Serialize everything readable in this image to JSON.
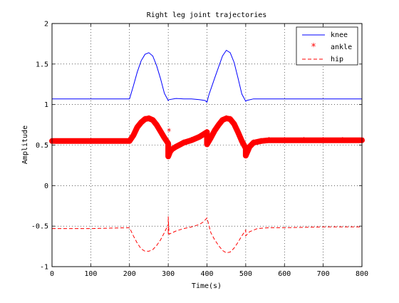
{
  "chart_data": {
    "type": "line",
    "title": "Right leg joint trajectories",
    "xlabel": "Time(s)",
    "ylabel": "Amplitude",
    "xlim": [
      0,
      800
    ],
    "ylim": [
      -1,
      2
    ],
    "xticks": [
      0,
      100,
      200,
      300,
      400,
      500,
      600,
      700,
      800
    ],
    "yticks": [
      -1,
      -0.5,
      0,
      0.5,
      1,
      1.5,
      2
    ],
    "xtick_labels": [
      "0",
      "100",
      "200",
      "300",
      "400",
      "500",
      "600",
      "700",
      "800"
    ],
    "ytick_labels": [
      "-1",
      "-0.5",
      "0",
      "0.5",
      "1",
      "1.5",
      "2"
    ],
    "grid": true,
    "legend_position": "top-right",
    "series": [
      {
        "name": "knee",
        "color": "#0000ff",
        "style": "solid",
        "x": [
          0,
          200,
          210,
          220,
          230,
          240,
          250,
          260,
          270,
          280,
          290,
          300,
          302,
          320,
          340,
          360,
          380,
          395,
          400,
          405,
          420,
          440,
          450,
          460,
          470,
          480,
          490,
          500,
          502,
          520,
          550,
          600,
          700,
          800
        ],
        "y": [
          1.07,
          1.07,
          1.23,
          1.4,
          1.54,
          1.62,
          1.64,
          1.6,
          1.48,
          1.32,
          1.14,
          1.05,
          1.06,
          1.075,
          1.07,
          1.07,
          1.06,
          1.05,
          1.03,
          1.12,
          1.33,
          1.6,
          1.67,
          1.64,
          1.52,
          1.33,
          1.13,
          1.04,
          1.05,
          1.07,
          1.07,
          1.07,
          1.07,
          1.07
        ]
      },
      {
        "name": "ankle",
        "color": "#ff0000",
        "style": "star-markers",
        "x": [
          0,
          100,
          200,
          210,
          220,
          230,
          240,
          250,
          260,
          270,
          280,
          290,
          300,
          300,
          305,
          310,
          320,
          340,
          360,
          380,
          400,
          400,
          410,
          420,
          430,
          440,
          450,
          460,
          470,
          480,
          490,
          500,
          500,
          510,
          520,
          540,
          560,
          600,
          650,
          700,
          750,
          800
        ],
        "y": [
          0.55,
          0.55,
          0.55,
          0.62,
          0.72,
          0.78,
          0.82,
          0.83,
          0.81,
          0.75,
          0.67,
          0.59,
          0.52,
          0.36,
          0.42,
          0.45,
          0.48,
          0.53,
          0.56,
          0.6,
          0.66,
          0.51,
          0.59,
          0.68,
          0.75,
          0.81,
          0.83,
          0.82,
          0.76,
          0.66,
          0.55,
          0.46,
          0.37,
          0.48,
          0.53,
          0.55,
          0.56,
          0.56,
          0.56,
          0.56,
          0.56,
          0.56
        ]
      },
      {
        "name": "hip",
        "color": "#ff0000",
        "style": "dashed",
        "x": [
          0,
          100,
          200,
          210,
          220,
          230,
          240,
          250,
          260,
          270,
          280,
          290,
          300,
          300,
          300,
          302,
          320,
          340,
          360,
          380,
          390,
          400,
          410,
          420,
          430,
          440,
          450,
          460,
          470,
          480,
          490,
          500,
          500,
          510,
          530,
          560,
          600,
          700,
          800
        ],
        "y": [
          -0.53,
          -0.53,
          -0.52,
          -0.62,
          -0.71,
          -0.78,
          -0.81,
          -0.81,
          -0.79,
          -0.74,
          -0.67,
          -0.58,
          -0.48,
          -0.6,
          -0.38,
          -0.6,
          -0.56,
          -0.53,
          -0.51,
          -0.48,
          -0.45,
          -0.4,
          -0.58,
          -0.67,
          -0.74,
          -0.8,
          -0.83,
          -0.82,
          -0.77,
          -0.7,
          -0.62,
          -0.55,
          -0.62,
          -0.57,
          -0.53,
          -0.52,
          -0.52,
          -0.51,
          -0.51
        ]
      }
    ]
  }
}
